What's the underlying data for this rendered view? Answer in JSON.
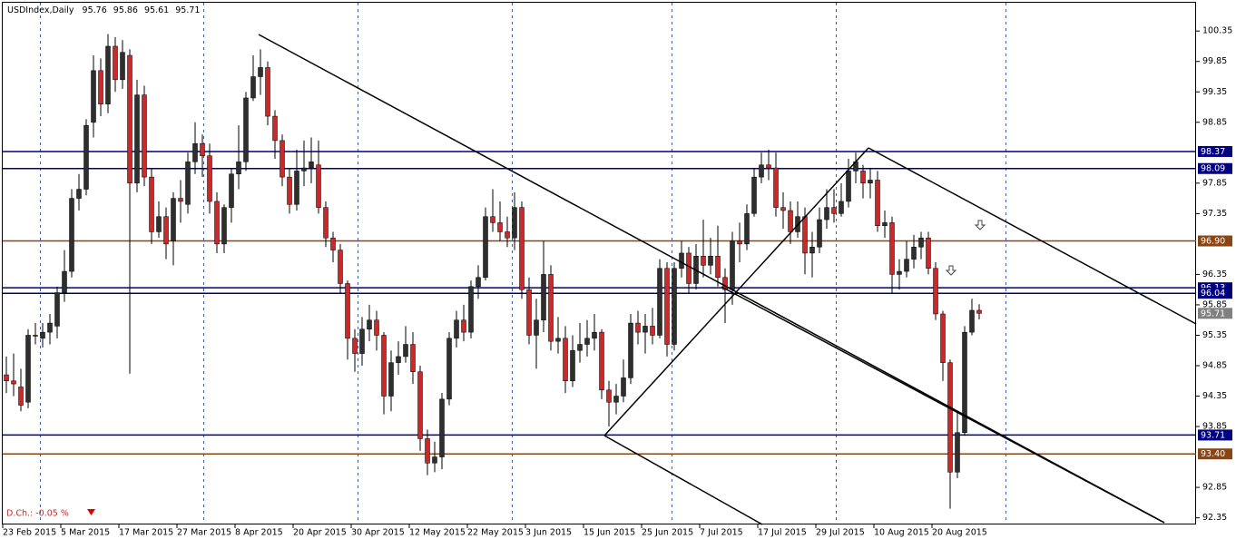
{
  "chart_data": {
    "type": "candlestick",
    "symbol": "USDIndex,Daily",
    "change_text": "D.Ch.: -0.05 %",
    "up_color": "#2f2f2f",
    "down_color": "#cc2a2a",
    "ylim": [
      92.24,
      100.86
    ],
    "yticks": [
      100.35,
      99.85,
      99.35,
      98.85,
      97.85,
      97.35,
      96.35,
      95.85,
      95.35,
      94.85,
      94.35,
      93.85,
      92.85,
      92.35
    ],
    "levels": [
      {
        "value": 98.37,
        "color": "#000080"
      },
      {
        "value": 98.09,
        "color": "#000080"
      },
      {
        "value": 96.9,
        "label": "96.90",
        "color": "#8b4513"
      },
      {
        "value": 96.13,
        "color": "#000080"
      },
      {
        "value": 96.04,
        "color": "#000080"
      },
      {
        "value": 93.71,
        "color": "#000080"
      },
      {
        "value": 93.4,
        "label": "93.40",
        "color": "#8b4513"
      }
    ],
    "categories": [
      "23 Feb 2015",
      null,
      null,
      null,
      null,
      null,
      null,
      null,
      "5 Mar 2015",
      null,
      null,
      null,
      null,
      null,
      null,
      null,
      "17 Mar 2015",
      null,
      null,
      null,
      null,
      null,
      null,
      null,
      "27 Mar 2015",
      null,
      null,
      null,
      null,
      null,
      null,
      null,
      "8 Apr 2015",
      null,
      null,
      null,
      null,
      null,
      null,
      null,
      "20 Apr 2015",
      null,
      null,
      null,
      null,
      null,
      null,
      null,
      "30 Apr 2015",
      null,
      null,
      null,
      null,
      null,
      null,
      null,
      "12 May 2015",
      null,
      null,
      null,
      null,
      null,
      null,
      null,
      "22 May 2015",
      null,
      null,
      null,
      null,
      null,
      null,
      null,
      "3 Jun 2015",
      null,
      null,
      null,
      null,
      null,
      null,
      null,
      "15 Jun 2015",
      null,
      null,
      null,
      null,
      null,
      null,
      null,
      "25 Jun 2015",
      null,
      null,
      null,
      null,
      null,
      null,
      null,
      "7 Jul 2015",
      null,
      null,
      null,
      null,
      null,
      null,
      null,
      "17 Jul 2015",
      null,
      null,
      null,
      null,
      null,
      null,
      null,
      "29 Jul 2015",
      null,
      null,
      null,
      null,
      null,
      null,
      null,
      "10 Aug 2015",
      null,
      null,
      null,
      null,
      null,
      null,
      null,
      "20 Aug 2015",
      null,
      null,
      null,
      null,
      null,
      null
    ],
    "open": [
      94.7,
      94.6,
      94.5,
      94.25,
      95.35,
      95.3,
      95.4,
      95.5,
      96.05,
      96.4,
      97.6,
      97.75,
      98.85,
      99.7,
      99.15,
      100.1,
      99.55,
      99.95,
      97.85,
      99.3,
      97.95,
      97.05,
      97.3,
      96.9,
      97.6,
      97.5,
      98.2,
      98.5,
      98.3,
      97.55,
      96.85,
      97.45,
      98.0,
      98.2,
      99.25,
      99.6,
      99.75,
      98.95,
      98.55,
      97.95,
      97.5,
      98.05,
      98.1,
      98.15,
      97.45,
      96.95,
      96.75,
      96.2,
      95.3,
      95.05,
      95.45,
      95.6,
      95.35,
      94.35,
      94.9,
      95.0,
      95.2,
      94.75,
      93.65,
      93.25,
      93.35,
      94.3,
      95.3,
      95.6,
      95.4,
      96.15,
      96.3,
      97.3,
      97.2,
      97.05,
      96.95,
      97.45,
      96.1,
      95.35,
      95.6,
      96.35,
      95.25,
      95.3,
      94.6,
      95.1,
      95.2,
      95.3,
      95.4,
      94.45,
      94.25,
      94.35,
      94.65,
      95.55,
      95.4,
      95.5,
      95.35,
      96.45,
      95.2,
      96.45,
      96.7,
      96.2,
      96.65,
      96.5,
      96.65,
      96.3,
      96.1,
      96.9,
      96.85,
      97.35,
      97.95,
      98.15,
      98.1,
      97.45,
      97.4,
      97.05,
      97.3,
      96.7,
      96.8,
      97.25,
      97.45,
      97.35,
      97.55,
      98.05,
      98.05,
      97.85,
      97.9,
      97.15,
      97.2,
      96.35,
      96.4,
      96.6,
      96.8,
      96.95,
      96.45,
      95.7,
      94.9,
      93.1,
      93.75,
      95.4,
      95.76
    ],
    "high": [
      95.0,
      95.05,
      94.8,
      95.45,
      95.55,
      95.55,
      95.7,
      96.15,
      96.75,
      97.75,
      98.0,
      98.9,
      99.95,
      99.9,
      100.3,
      100.25,
      100.2,
      100.05,
      99.55,
      99.45,
      98.1,
      97.55,
      97.45,
      97.7,
      97.9,
      98.35,
      98.85,
      98.65,
      98.5,
      97.7,
      97.5,
      98.1,
      98.8,
      99.35,
      99.95,
      100.05,
      99.85,
      99.05,
      98.65,
      98.1,
      98.4,
      98.55,
      98.6,
      98.55,
      97.55,
      97.05,
      96.85,
      96.25,
      95.45,
      95.65,
      95.85,
      95.75,
      95.4,
      95.1,
      95.25,
      95.5,
      95.4,
      94.85,
      93.8,
      93.6,
      94.4,
      95.4,
      95.75,
      95.85,
      96.25,
      96.5,
      97.45,
      97.75,
      97.55,
      97.3,
      97.7,
      97.55,
      96.3,
      95.95,
      96.9,
      96.5,
      95.65,
      95.5,
      95.35,
      95.55,
      95.6,
      95.7,
      95.45,
      94.6,
      94.55,
      94.95,
      95.7,
      95.75,
      95.7,
      95.8,
      96.6,
      96.55,
      96.55,
      96.9,
      96.8,
      96.85,
      97.25,
      96.95,
      97.15,
      96.45,
      97.05,
      97.2,
      97.5,
      98.1,
      98.35,
      98.4,
      98.35,
      97.7,
      97.55,
      97.55,
      97.45,
      97.05,
      97.45,
      97.75,
      97.75,
      97.85,
      98.25,
      98.35,
      98.15,
      98.1,
      98.05,
      97.4,
      97.3,
      96.6,
      96.9,
      97.0,
      97.05,
      97.05,
      96.55,
      95.75,
      94.95,
      94.1,
      95.5,
      95.95,
      95.86
    ],
    "low": [
      94.4,
      94.35,
      94.1,
      94.15,
      95.2,
      95.15,
      95.2,
      95.3,
      95.9,
      96.3,
      97.4,
      97.65,
      98.6,
      98.95,
      99.0,
      99.35,
      99.4,
      94.72,
      97.7,
      97.8,
      96.85,
      96.95,
      96.6,
      96.5,
      97.2,
      97.35,
      98.0,
      97.95,
      97.35,
      96.7,
      96.7,
      97.2,
      97.75,
      98.05,
      99.2,
      99.3,
      98.8,
      98.25,
      97.8,
      97.35,
      97.4,
      97.8,
      97.85,
      97.35,
      96.8,
      96.55,
      96.05,
      94.95,
      94.75,
      94.85,
      95.25,
      95.1,
      94.05,
      94.1,
      94.7,
      94.9,
      94.55,
      93.45,
      93.05,
      93.1,
      93.15,
      94.2,
      95.15,
      95.25,
      95.3,
      95.95,
      96.25,
      97.05,
      96.9,
      96.8,
      96.75,
      95.95,
      95.2,
      94.8,
      95.4,
      95.1,
      95.05,
      94.4,
      94.5,
      94.9,
      95.0,
      95.1,
      94.3,
      93.85,
      94.05,
      94.25,
      94.55,
      95.2,
      95.05,
      95.2,
      95.3,
      95.0,
      95.1,
      96.3,
      96.05,
      96.1,
      96.3,
      96.35,
      96.15,
      95.55,
      95.85,
      96.55,
      96.75,
      97.3,
      97.85,
      97.9,
      97.3,
      97.1,
      96.85,
      96.95,
      96.35,
      96.3,
      96.7,
      97.1,
      97.2,
      97.3,
      97.45,
      97.85,
      97.6,
      97.6,
      97.05,
      96.95,
      96.05,
      96.1,
      96.3,
      96.45,
      96.6,
      96.35,
      95.6,
      94.6,
      92.5,
      93.0,
      93.7,
      95.35,
      95.61
    ],
    "close": [
      94.6,
      94.55,
      94.2,
      95.35,
      95.35,
      95.4,
      95.55,
      96.05,
      96.4,
      97.6,
      97.75,
      98.8,
      99.7,
      99.15,
      100.1,
      99.55,
      100.0,
      97.85,
      99.3,
      97.95,
      97.05,
      97.3,
      96.85,
      97.6,
      97.55,
      98.2,
      98.5,
      98.3,
      97.55,
      96.85,
      97.45,
      98.0,
      98.2,
      99.25,
      99.6,
      99.75,
      98.95,
      98.55,
      97.95,
      97.5,
      98.05,
      98.1,
      98.2,
      97.45,
      96.95,
      96.75,
      96.2,
      95.3,
      95.05,
      95.45,
      95.6,
      95.35,
      94.35,
      94.9,
      95.0,
      95.2,
      94.75,
      93.65,
      93.25,
      93.35,
      94.3,
      95.3,
      95.6,
      95.4,
      96.15,
      96.3,
      97.3,
      97.2,
      97.05,
      96.95,
      97.45,
      96.1,
      95.35,
      95.6,
      96.35,
      95.25,
      95.3,
      94.6,
      95.1,
      95.2,
      95.3,
      95.4,
      94.45,
      94.25,
      94.35,
      94.65,
      95.55,
      95.4,
      95.5,
      95.35,
      96.45,
      95.2,
      96.45,
      96.7,
      96.2,
      96.65,
      96.5,
      96.65,
      96.3,
      96.1,
      96.9,
      96.85,
      97.35,
      97.95,
      98.15,
      98.1,
      97.45,
      97.4,
      97.05,
      97.3,
      96.7,
      96.8,
      97.25,
      97.45,
      97.35,
      97.55,
      98.05,
      98.2,
      97.85,
      97.9,
      97.15,
      97.2,
      96.35,
      96.4,
      96.6,
      96.8,
      96.95,
      96.45,
      95.7,
      94.9,
      93.1,
      93.75,
      95.4,
      95.76,
      95.71
    ]
  }
}
